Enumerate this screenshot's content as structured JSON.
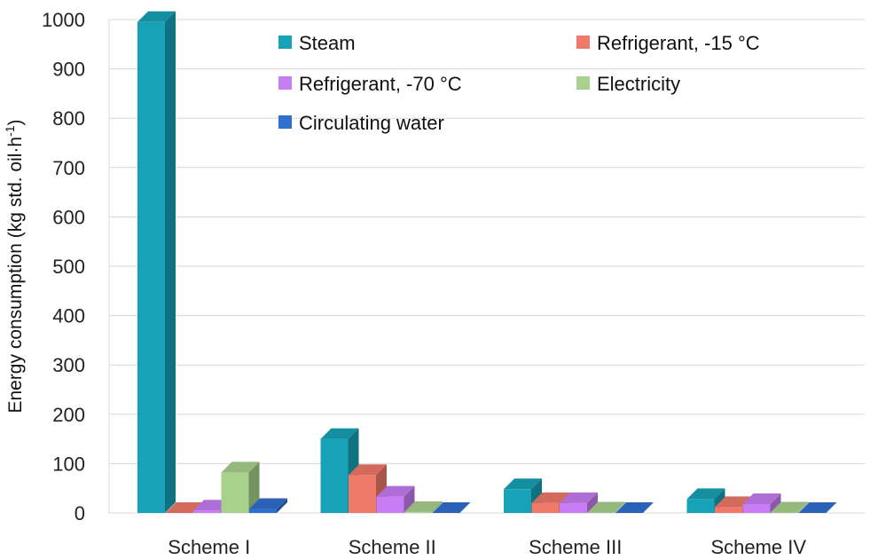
{
  "chart_data": {
    "type": "bar",
    "style": "3d-clustered-column",
    "title": "",
    "xlabel": "",
    "ylabel": "Energy consumption (kg std. oil·h",
    "ylabel_sup": "-1",
    "ylabel_tail": ")",
    "ylim": [
      0,
      1000
    ],
    "yticks": [
      0,
      100,
      200,
      300,
      400,
      500,
      600,
      700,
      800,
      900,
      1000
    ],
    "grid": true,
    "legend_position": "top-right",
    "categories": [
      "Scheme I",
      "Scheme II",
      "Scheme III",
      "Scheme IV"
    ],
    "series": [
      {
        "name": "Steam",
        "color": "#17A2B8",
        "values": [
          995,
          150,
          48,
          28
        ]
      },
      {
        "name": "Refrigerant, -15 °C",
        "color": "#F07A6A",
        "values": [
          0,
          77,
          20,
          12
        ]
      },
      {
        "name": "Refrigerant, -70 °C",
        "color": "#C77DF3",
        "values": [
          5,
          33,
          20,
          18
        ]
      },
      {
        "name": "Electricity",
        "color": "#A9D18E",
        "values": [
          82,
          2,
          1,
          1
        ]
      },
      {
        "name": "Circulating water",
        "color": "#2F6FD0",
        "values": [
          8,
          0,
          0,
          0
        ]
      }
    ]
  }
}
